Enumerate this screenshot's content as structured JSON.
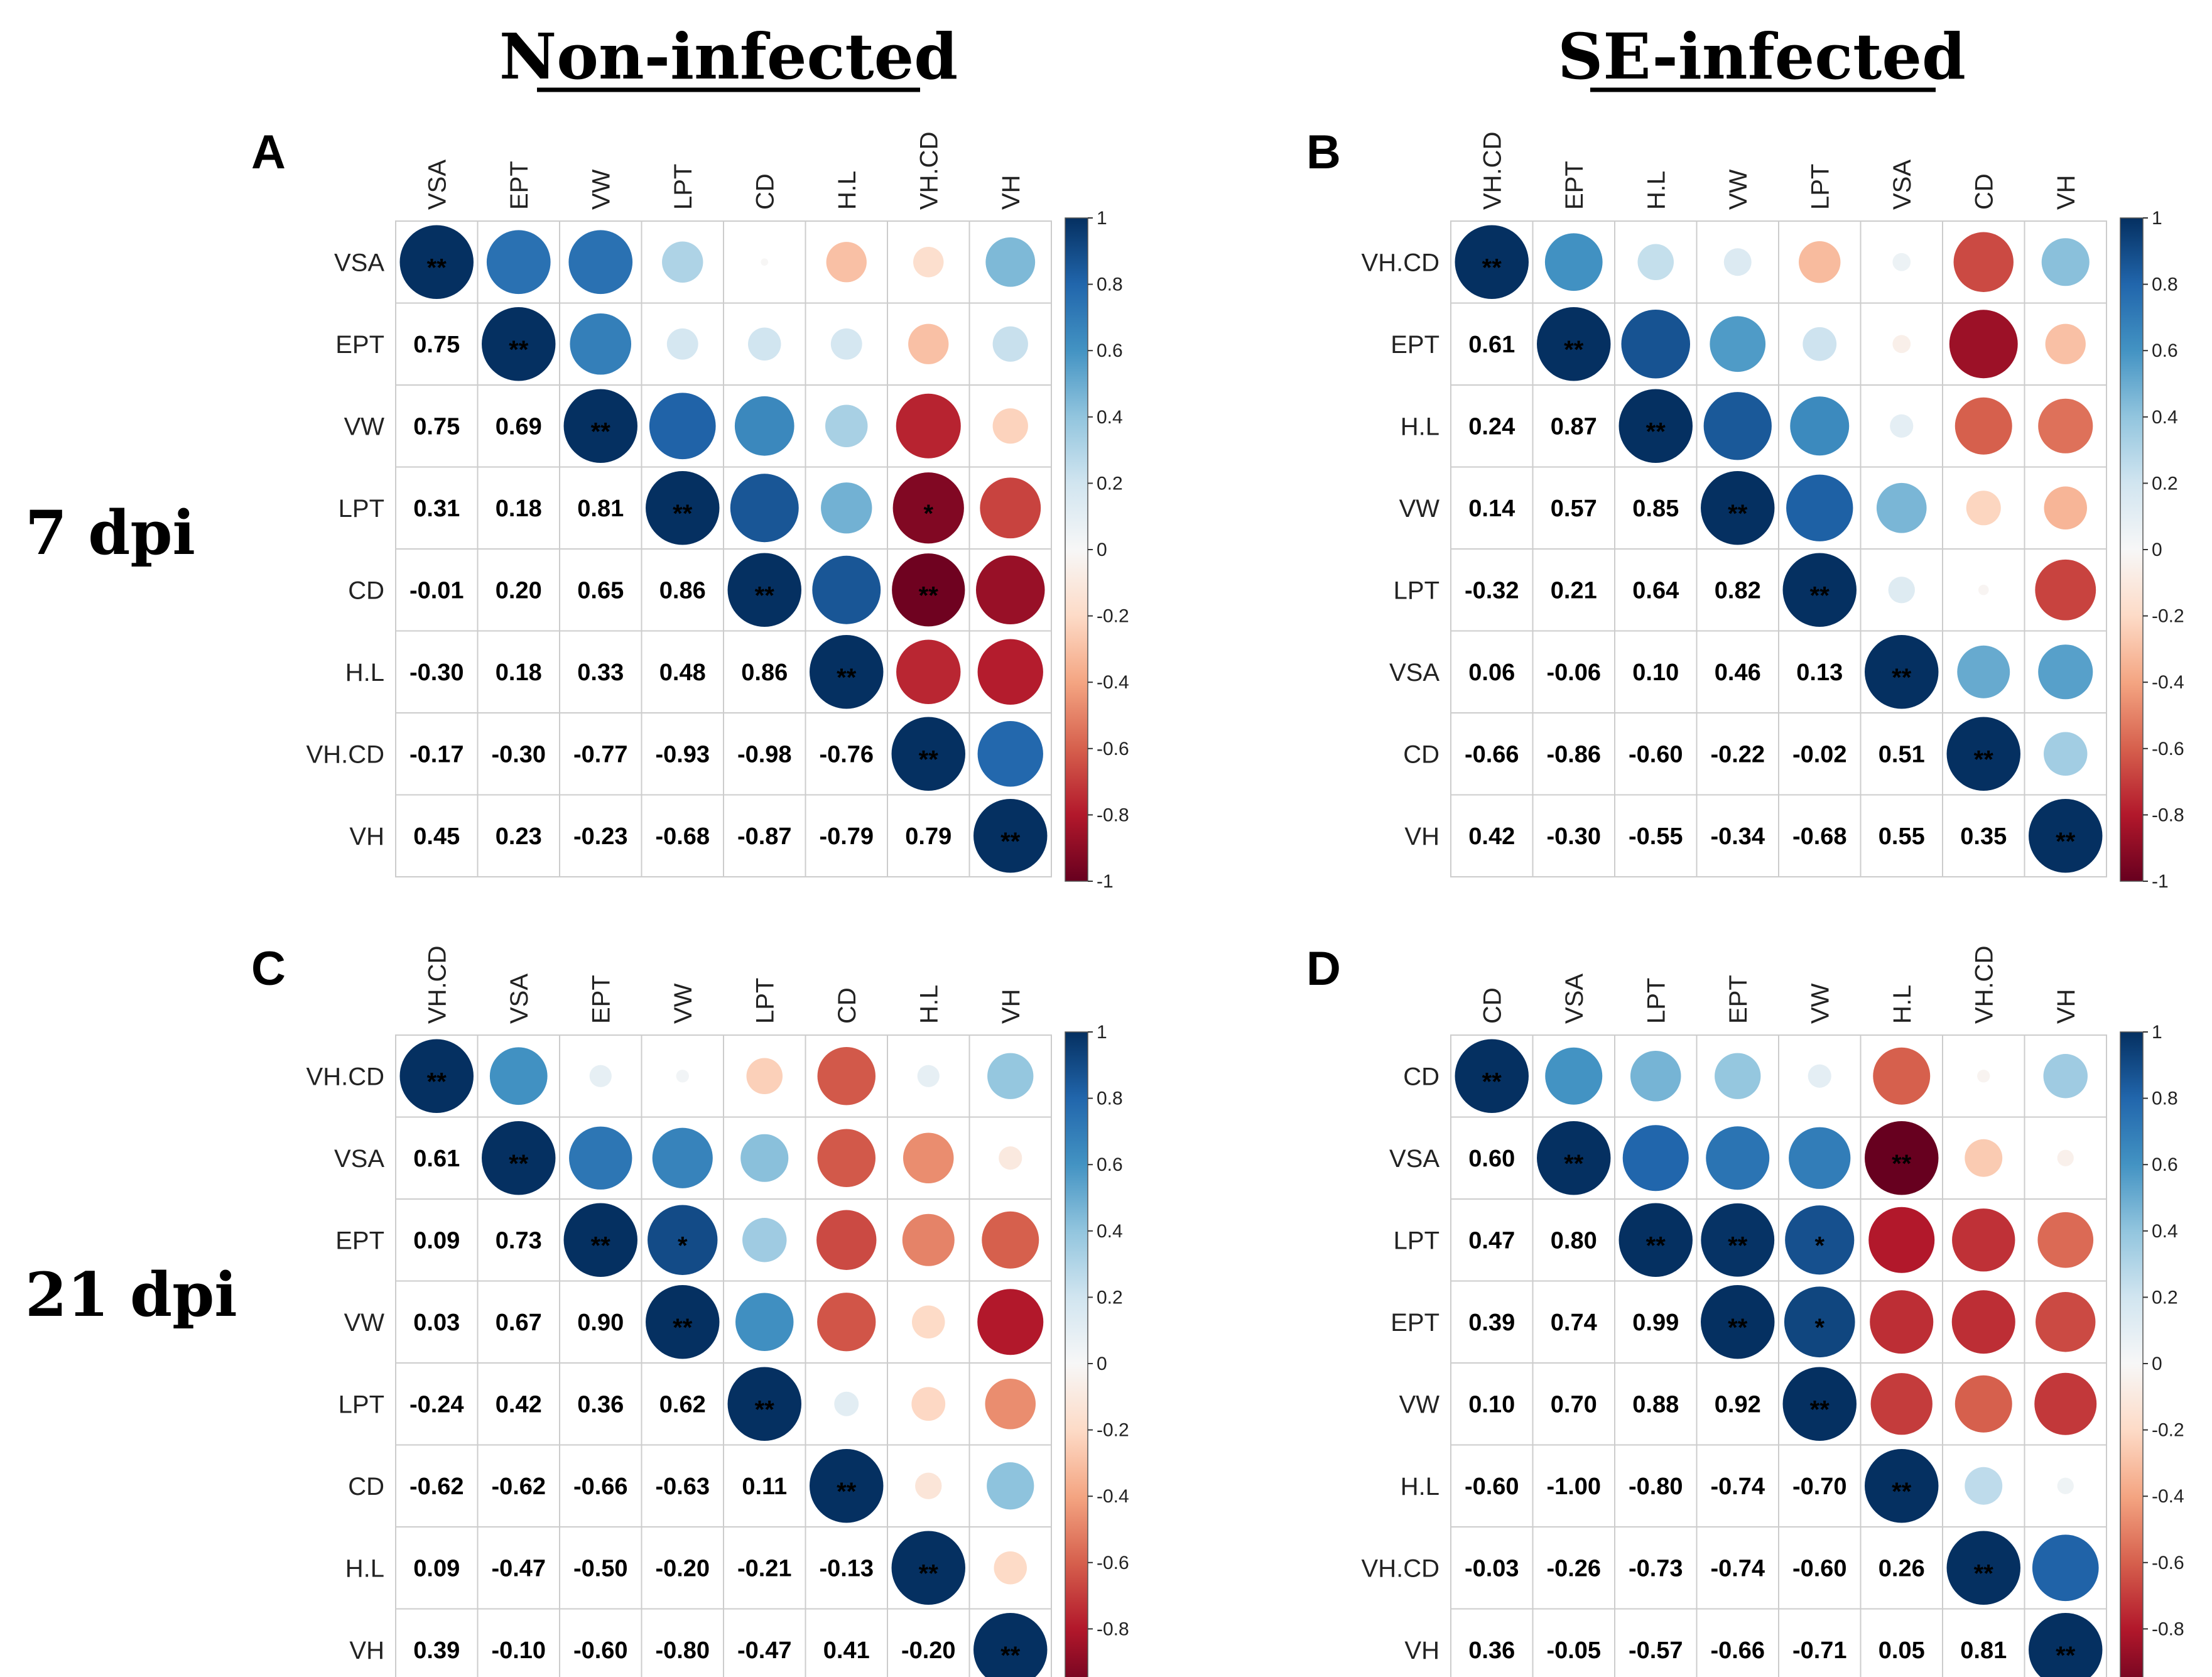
{
  "headers": {
    "left": "Non-infected",
    "right": "SE-infected",
    "row1": "7 dpi",
    "row2": "21 dpi"
  },
  "colorbar_ticks": [
    "1",
    "0.8",
    "0.6",
    "0.4",
    "0.2",
    "0",
    "-0.2",
    "-0.4",
    "-0.6",
    "-0.8",
    "-1"
  ],
  "colors": {
    "strong_negative": "#67001F",
    "neutral": "#F7F7F7",
    "strong_positive": "#053061",
    "grid": "#CCCCCC"
  },
  "chart_data": [
    {
      "type": "heatmap",
      "panel": "A",
      "group": "Non-infected",
      "time": "7 dpi",
      "variables": [
        "VSA",
        "EPT",
        "VW",
        "LPT",
        "CD",
        "H.L",
        "VH.CD",
        "VH"
      ],
      "matrix": [
        [
          1,
          0.75,
          0.75,
          0.31,
          -0.01,
          -0.3,
          -0.17,
          0.45
        ],
        [
          0.75,
          1,
          0.69,
          0.18,
          0.2,
          0.18,
          -0.3,
          0.23
        ],
        [
          0.75,
          0.69,
          1,
          0.81,
          0.65,
          0.33,
          -0.77,
          -0.23
        ],
        [
          0.31,
          0.18,
          0.81,
          1,
          0.86,
          0.48,
          -0.93,
          -0.68
        ],
        [
          -0.01,
          0.2,
          0.65,
          0.86,
          1,
          0.86,
          -0.98,
          -0.87
        ],
        [
          -0.3,
          0.18,
          0.33,
          0.48,
          0.86,
          1,
          -0.76,
          -0.79
        ],
        [
          -0.17,
          -0.3,
          -0.77,
          -0.93,
          -0.98,
          -0.76,
          1,
          0.79
        ],
        [
          0.45,
          0.23,
          -0.23,
          -0.68,
          -0.87,
          -0.79,
          0.79,
          1
        ]
      ],
      "labels": [
        [
          "",
          "",
          "",
          "",
          "",
          "",
          "",
          ""
        ],
        [
          "0.75",
          "",
          "",
          "",
          "",
          "",
          "",
          ""
        ],
        [
          "0.75",
          "0.69",
          "",
          "",
          "",
          "",
          "",
          ""
        ],
        [
          "0.31",
          "0.18",
          "0.81",
          "",
          "",
          "",
          "",
          ""
        ],
        [
          "-0.01",
          "0.20",
          "0.65",
          "0.86",
          "",
          "",
          "",
          ""
        ],
        [
          "-0.30",
          "0.18",
          "0.33",
          "0.48",
          "0.86",
          "",
          "",
          ""
        ],
        [
          "-0.17",
          "-0.30",
          "-0.77",
          "-0.93",
          "-0.98",
          "-0.76",
          "",
          ""
        ],
        [
          "0.45",
          "0.23",
          "-0.23",
          "-0.68",
          "-0.87",
          "-0.79",
          "0.79",
          ""
        ]
      ],
      "significance": [
        [
          "**",
          "",
          "",
          "",
          "",
          "",
          "",
          ""
        ],
        [
          "",
          "**",
          "",
          "",
          "",
          "",
          "",
          ""
        ],
        [
          "",
          "",
          "**",
          "",
          "",
          "",
          "",
          ""
        ],
        [
          "",
          "",
          "",
          "**",
          "",
          "",
          "*",
          ""
        ],
        [
          "",
          "",
          "",
          "",
          "**",
          "",
          "**",
          ""
        ],
        [
          "",
          "",
          "",
          "",
          "",
          "**",
          "",
          ""
        ],
        [
          "",
          "",
          "",
          "",
          "",
          "",
          "**",
          ""
        ],
        [
          "",
          "",
          "",
          "",
          "",
          "",
          "",
          "**"
        ]
      ],
      "legend": {
        "min": -1,
        "max": 1
      }
    },
    {
      "type": "heatmap",
      "panel": "B",
      "group": "SE-infected",
      "time": "7 dpi",
      "variables": [
        "VH.CD",
        "EPT",
        "H.L",
        "VW",
        "LPT",
        "VSA",
        "CD",
        "VH"
      ],
      "matrix": [
        [
          1,
          0.61,
          0.24,
          0.14,
          -0.32,
          0.06,
          -0.66,
          0.42
        ],
        [
          0.61,
          1,
          0.87,
          0.57,
          0.21,
          -0.06,
          -0.86,
          -0.3
        ],
        [
          0.24,
          0.87,
          1,
          0.85,
          0.64,
          0.1,
          -0.6,
          -0.55
        ],
        [
          0.14,
          0.57,
          0.85,
          1,
          0.82,
          0.46,
          -0.22,
          -0.34
        ],
        [
          -0.32,
          0.21,
          0.64,
          0.82,
          1,
          0.13,
          -0.02,
          -0.68
        ],
        [
          0.06,
          -0.06,
          0.1,
          0.46,
          0.13,
          1,
          0.51,
          0.55
        ],
        [
          -0.66,
          -0.86,
          -0.6,
          -0.22,
          -0.02,
          0.51,
          1,
          0.35
        ],
        [
          0.42,
          -0.3,
          -0.55,
          -0.34,
          -0.68,
          0.55,
          0.35,
          1
        ]
      ],
      "labels": [
        [
          "",
          "",
          "",
          "",
          "",
          "",
          "",
          ""
        ],
        [
          "0.61",
          "",
          "",
          "",
          "",
          "",
          "",
          ""
        ],
        [
          "0.24",
          "0.87",
          "",
          "",
          "",
          "",
          "",
          ""
        ],
        [
          "0.14",
          "0.57",
          "0.85",
          "",
          "",
          "",
          "",
          ""
        ],
        [
          "-0.32",
          "0.21",
          "0.64",
          "0.82",
          "",
          "",
          "",
          ""
        ],
        [
          "0.06",
          "-0.06",
          "0.10",
          "0.46",
          "0.13",
          "",
          "",
          ""
        ],
        [
          "-0.66",
          "-0.86",
          "-0.60",
          "-0.22",
          "-0.02",
          "0.51",
          "",
          ""
        ],
        [
          "0.42",
          "-0.30",
          "-0.55",
          "-0.34",
          "-0.68",
          "0.55",
          "0.35",
          ""
        ]
      ],
      "significance": [
        [
          "**",
          "",
          "",
          "",
          "",
          "",
          "",
          ""
        ],
        [
          "",
          "**",
          "",
          "",
          "",
          "",
          "",
          ""
        ],
        [
          "",
          "",
          "**",
          "",
          "",
          "",
          "",
          ""
        ],
        [
          "",
          "",
          "",
          "**",
          "",
          "",
          "",
          ""
        ],
        [
          "",
          "",
          "",
          "",
          "**",
          "",
          "",
          ""
        ],
        [
          "",
          "",
          "",
          "",
          "",
          "**",
          "",
          ""
        ],
        [
          "",
          "",
          "",
          "",
          "",
          "",
          "**",
          ""
        ],
        [
          "",
          "",
          "",
          "",
          "",
          "",
          "",
          "**"
        ]
      ],
      "legend": {
        "min": -1,
        "max": 1
      }
    },
    {
      "type": "heatmap",
      "panel": "C",
      "group": "Non-infected",
      "time": "21 dpi",
      "variables": [
        "VH.CD",
        "VSA",
        "EPT",
        "VW",
        "LPT",
        "CD",
        "H.L",
        "VH"
      ],
      "matrix": [
        [
          1,
          0.61,
          0.09,
          0.03,
          -0.24,
          -0.62,
          0.09,
          0.39
        ],
        [
          0.61,
          1,
          0.73,
          0.67,
          0.42,
          -0.62,
          -0.47,
          -0.1
        ],
        [
          0.09,
          0.73,
          1,
          0.9,
          0.36,
          -0.66,
          -0.5,
          -0.6
        ],
        [
          0.03,
          0.67,
          0.9,
          1,
          0.62,
          -0.63,
          -0.2,
          -0.8
        ],
        [
          -0.24,
          0.42,
          0.36,
          0.62,
          1,
          0.11,
          -0.21,
          -0.47
        ],
        [
          -0.62,
          -0.62,
          -0.66,
          -0.63,
          0.11,
          1,
          -0.13,
          0.41
        ],
        [
          0.09,
          -0.47,
          -0.5,
          -0.2,
          -0.21,
          -0.13,
          1,
          -0.2
        ],
        [
          0.39,
          -0.1,
          -0.6,
          -0.8,
          -0.47,
          0.41,
          -0.2,
          1
        ]
      ],
      "labels": [
        [
          "",
          "",
          "",
          "",
          "",
          "",
          "",
          ""
        ],
        [
          "0.61",
          "",
          "",
          "",
          "",
          "",
          "",
          ""
        ],
        [
          "0.09",
          "0.73",
          "",
          "",
          "",
          "",
          "",
          ""
        ],
        [
          "0.03",
          "0.67",
          "0.90",
          "",
          "",
          "",
          "",
          ""
        ],
        [
          "-0.24",
          "0.42",
          "0.36",
          "0.62",
          "",
          "",
          "",
          ""
        ],
        [
          "-0.62",
          "-0.62",
          "-0.66",
          "-0.63",
          "0.11",
          "",
          "",
          ""
        ],
        [
          "0.09",
          "-0.47",
          "-0.50",
          "-0.20",
          "-0.21",
          "-0.13",
          "",
          ""
        ],
        [
          "0.39",
          "-0.10",
          "-0.60",
          "-0.80",
          "-0.47",
          "0.41",
          "-0.20",
          ""
        ]
      ],
      "significance": [
        [
          "**",
          "",
          "",
          "",
          "",
          "",
          "",
          ""
        ],
        [
          "",
          "**",
          "",
          "",
          "",
          "",
          "",
          ""
        ],
        [
          "",
          "",
          "**",
          "*",
          "",
          "",
          "",
          ""
        ],
        [
          "",
          "",
          "",
          "**",
          "",
          "",
          "",
          ""
        ],
        [
          "",
          "",
          "",
          "",
          "**",
          "",
          "",
          ""
        ],
        [
          "",
          "",
          "",
          "",
          "",
          "**",
          "",
          ""
        ],
        [
          "",
          "",
          "",
          "",
          "",
          "",
          "**",
          ""
        ],
        [
          "",
          "",
          "",
          "",
          "",
          "",
          "",
          "**"
        ]
      ],
      "legend": {
        "min": -1,
        "max": 1
      }
    },
    {
      "type": "heatmap",
      "panel": "D",
      "group": "SE-infected",
      "time": "21 dpi",
      "variables": [
        "CD",
        "VSA",
        "LPT",
        "EPT",
        "VW",
        "H.L",
        "VH.CD",
        "VH"
      ],
      "matrix": [
        [
          1,
          0.6,
          0.47,
          0.39,
          0.1,
          -0.6,
          -0.03,
          0.36
        ],
        [
          0.6,
          1,
          0.8,
          0.74,
          0.7,
          -1.0,
          -0.26,
          -0.05
        ],
        [
          0.47,
          0.8,
          1,
          0.99,
          0.88,
          -0.8,
          -0.73,
          -0.57
        ],
        [
          0.39,
          0.74,
          0.99,
          1,
          0.92,
          -0.74,
          -0.74,
          -0.66
        ],
        [
          0.1,
          0.7,
          0.88,
          0.92,
          1,
          -0.7,
          -0.6,
          -0.71
        ],
        [
          -0.6,
          -1.0,
          -0.8,
          -0.74,
          -0.7,
          1,
          0.26,
          0.05
        ],
        [
          -0.03,
          -0.26,
          -0.73,
          -0.74,
          -0.6,
          0.26,
          1,
          0.81
        ],
        [
          0.36,
          -0.05,
          -0.57,
          -0.66,
          -0.71,
          0.05,
          0.81,
          1
        ]
      ],
      "labels": [
        [
          "",
          "",
          "",
          "",
          "",
          "",
          "",
          ""
        ],
        [
          "0.60",
          "",
          "",
          "",
          "",
          "",
          "",
          ""
        ],
        [
          "0.47",
          "0.80",
          "",
          "",
          "",
          "",
          "",
          ""
        ],
        [
          "0.39",
          "0.74",
          "0.99",
          "",
          "",
          "",
          "",
          ""
        ],
        [
          "0.10",
          "0.70",
          "0.88",
          "0.92",
          "",
          "",
          "",
          ""
        ],
        [
          "-0.60",
          "-1.00",
          "-0.80",
          "-0.74",
          "-0.70",
          "",
          "",
          ""
        ],
        [
          "-0.03",
          "-0.26",
          "-0.73",
          "-0.74",
          "-0.60",
          "0.26",
          "",
          ""
        ],
        [
          "0.36",
          "-0.05",
          "-0.57",
          "-0.66",
          "-0.71",
          "0.05",
          "0.81",
          ""
        ]
      ],
      "significance": [
        [
          "**",
          "",
          "",
          "",
          "",
          "",
          "",
          ""
        ],
        [
          "",
          "**",
          "",
          "",
          "",
          "**",
          "",
          ""
        ],
        [
          "",
          "",
          "**",
          "**",
          "*",
          "",
          "",
          ""
        ],
        [
          "",
          "",
          "",
          "**",
          "*",
          "",
          "",
          ""
        ],
        [
          "",
          "",
          "",
          "",
          "**",
          "",
          "",
          ""
        ],
        [
          "",
          "",
          "",
          "",
          "",
          "**",
          "",
          ""
        ],
        [
          "",
          "",
          "",
          "",
          "",
          "",
          "**",
          ""
        ],
        [
          "",
          "",
          "",
          "",
          "",
          "",
          "",
          "**"
        ]
      ],
      "legend": {
        "min": -1,
        "max": 1
      }
    }
  ]
}
